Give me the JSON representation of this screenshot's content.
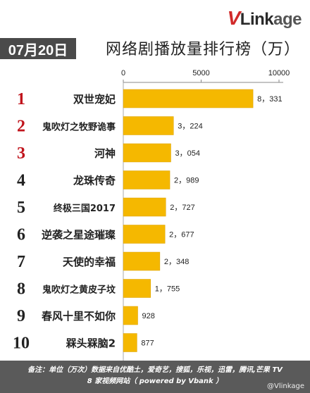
{
  "logo": {
    "v": "V",
    "link": "Link",
    "rest": "age"
  },
  "header": {
    "date": "07月20日",
    "title": "网络剧播放量排行榜（万）"
  },
  "chart_data": {
    "type": "bar",
    "orientation": "horizontal",
    "title": "网络剧播放量排行榜（万）",
    "xlim": [
      0,
      10000
    ],
    "xticks": [
      "0",
      "5000",
      "10000"
    ],
    "grid": false,
    "bar_color": "#f5b800",
    "ranks": [
      "1",
      "2",
      "3",
      "4",
      "5",
      "6",
      "7",
      "8",
      "9",
      "10"
    ],
    "categories": [
      "双世宠妃",
      "鬼吹灯之牧野诡事",
      "河神",
      "龙珠传奇",
      "终极三国2017",
      "逆袭之星途璀璨",
      "天使的幸福",
      "鬼吹灯之黄皮子坟",
      "春风十里不如你",
      "槑头槑脑2"
    ],
    "values": [
      8331,
      3224,
      3054,
      2989,
      2727,
      2677,
      2348,
      1755,
      928,
      877
    ],
    "value_labels": [
      "8，331",
      "3，224",
      "3，054",
      "2，989",
      "2，727",
      "2，677",
      "2，348",
      "1，755",
      "928",
      "877"
    ]
  },
  "footer": {
    "line1": "备注：单位（万次）数据来自优酷土，爱奇艺，搜狐，乐视，迅雷，腾讯,芒果 TV",
    "line2": "8 家视频网站（ powered by Vbank ）"
  },
  "watermark": "@Vlinkage",
  "colors": {
    "rank_top3": "#c0141c",
    "rank_other": "#222222",
    "bar": "#f5b800"
  }
}
